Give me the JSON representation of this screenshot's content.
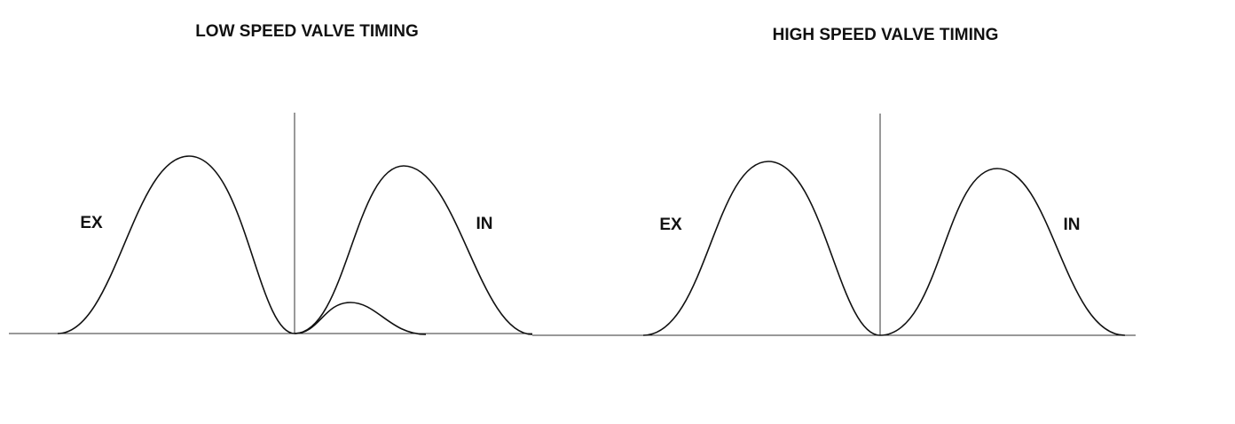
{
  "panels": [
    {
      "title": "LOW SPEED VALVE TIMING",
      "exhaust_label": "EX",
      "intake_label": "IN"
    },
    {
      "title": "HIGH SPEED VALVE TIMING",
      "exhaust_label": "EX",
      "intake_label": "IN"
    }
  ]
}
